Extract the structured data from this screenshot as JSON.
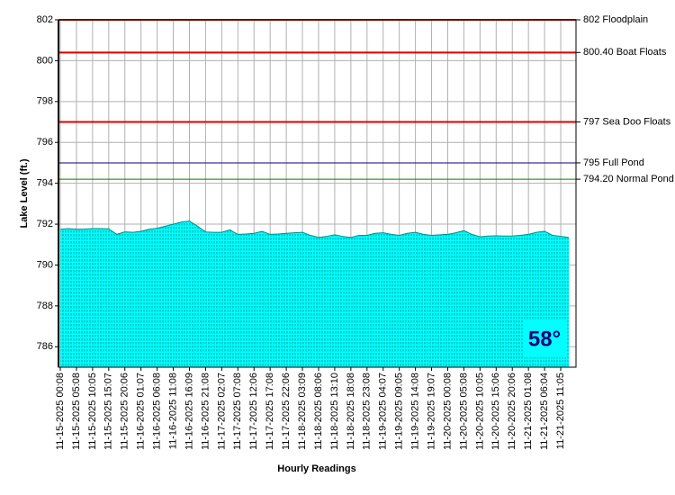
{
  "chart_data": {
    "type": "area",
    "y_axis_label": "Lake Level (ft.)",
    "x_axis_label": "Hourly Readings",
    "annotation": "58°",
    "color": "#00ffff",
    "grid": true,
    "ylim": [
      785,
      802
    ],
    "yticks": [
      786,
      788,
      790,
      792,
      794,
      796,
      798,
      800,
      802
    ],
    "reference_lines": [
      {
        "value": 802,
        "label": "802 Floodplain",
        "color": "#e00000"
      },
      {
        "value": 800.4,
        "label": "800.40 Boat Floats",
        "color": "#e00000"
      },
      {
        "value": 797,
        "label": "797 Sea Doo Floats",
        "color": "#e00000"
      },
      {
        "value": 795,
        "label": "795 Full Pond",
        "color": "#000080"
      },
      {
        "value": 794.2,
        "label": "794.20 Normal Pond",
        "color": "#008000"
      }
    ],
    "categories": [
      "11-15-2025 00:08",
      null,
      "11-15-2025 05:08",
      null,
      "11-15-2025 10:05",
      null,
      "11-15-2025 15:07",
      null,
      "11-15-2025 20:06",
      null,
      "11-16-2025 01:07",
      null,
      "11-16-2025 06:08",
      null,
      "11-16-2025 11:08",
      null,
      "11-16-2025 16:09",
      null,
      "11-16-2025 21:08",
      null,
      "11-17-2025 02:07",
      null,
      "11-17-2025 07:08",
      null,
      "11-17-2025 12:06",
      null,
      "11-17-2025 17:08",
      null,
      "11-17-2025 22:06",
      null,
      "11-18-2025 03:09",
      null,
      "11-18-2025 08:06",
      null,
      "11-18-2025 13:10",
      null,
      "11-18-2025 18:08",
      null,
      "11-18-2025 23:08",
      null,
      "11-19-2025 04:07",
      null,
      "11-19-2025 09:05",
      null,
      "11-19-2025 14:08",
      null,
      "11-19-2025 19:07",
      null,
      "11-20-2025 00:08",
      null,
      "11-20-2025 05:08",
      null,
      "11-20-2025 10:05",
      null,
      "11-20-2025 15:06",
      null,
      "11-20-2025 20:06",
      null,
      "11-21-2025 01:08",
      null,
      "11-21-2025 06:04",
      null,
      "11-21-2025 11:05",
      null
    ],
    "values": [
      791.75,
      791.78,
      791.75,
      791.76,
      791.78,
      791.78,
      791.77,
      791.5,
      791.62,
      791.6,
      791.65,
      791.75,
      791.8,
      791.9,
      792.0,
      792.1,
      792.15,
      791.9,
      791.62,
      791.6,
      791.6,
      791.72,
      791.5,
      791.52,
      791.55,
      791.65,
      791.5,
      791.52,
      791.55,
      791.58,
      791.6,
      791.45,
      791.35,
      791.4,
      791.48,
      791.4,
      791.35,
      791.45,
      791.45,
      791.55,
      791.58,
      791.5,
      791.45,
      791.55,
      791.6,
      791.5,
      791.45,
      791.48,
      791.5,
      791.58,
      791.68,
      791.5,
      791.38,
      791.42,
      791.43,
      791.42,
      791.42,
      791.45,
      791.5,
      791.6,
      791.65,
      791.45,
      791.4,
      791.35
    ]
  }
}
